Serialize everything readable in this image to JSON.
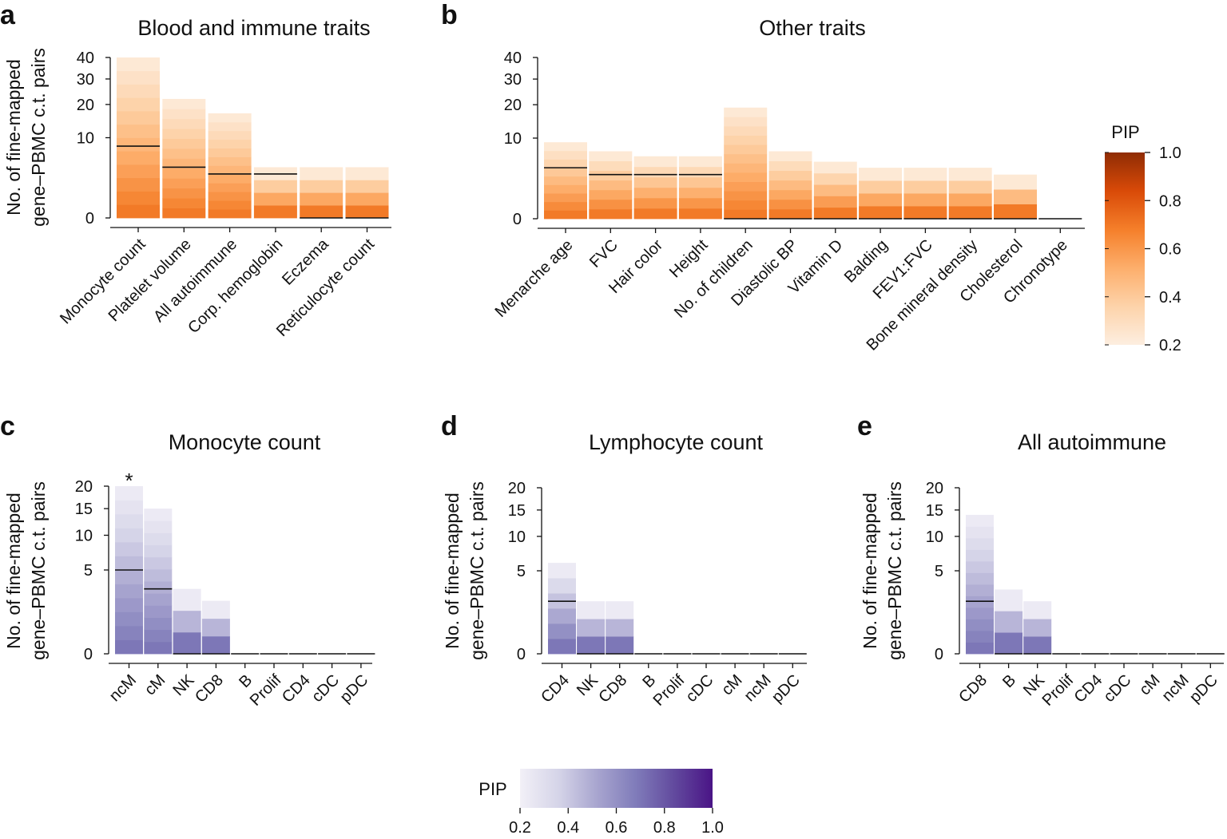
{
  "panel_letters": [
    "a",
    "b",
    "c",
    "d",
    "e"
  ],
  "ylabel_lines": [
    "No. of fine-mapped",
    "gene–PBMC c.t. pairs"
  ],
  "chart_data": [
    {
      "id": "a",
      "type": "bar",
      "stacked_by": "PIP",
      "title": "Blood and immune traits",
      "xlabel": "",
      "ylabel": "No. of fine-mapped gene–PBMC c.t. pairs",
      "y_scale": "square-root",
      "ylim": [
        0,
        40
      ],
      "y_ticks": [
        0,
        10,
        20,
        30,
        40
      ],
      "colormap": "Oranges",
      "categories": [
        "Monocyte count",
        "Platelet volume",
        "All autoimmune",
        "Corp. hemoglobin",
        "Eczema",
        "Reticulocyte count"
      ],
      "values": [
        40,
        22,
        17,
        4,
        4,
        4
      ],
      "pip_09_line": [
        8,
        4,
        3,
        3,
        0,
        0
      ],
      "annotations": []
    },
    {
      "id": "b",
      "type": "bar",
      "stacked_by": "PIP",
      "title": "Other traits",
      "xlabel": "",
      "ylabel": "",
      "y_scale": "square-root",
      "ylim": [
        0,
        40
      ],
      "y_ticks": [
        0,
        10,
        20,
        30,
        40
      ],
      "colormap": "Oranges",
      "categories": [
        "Menarche age",
        "FVC",
        "Hair color",
        "Height",
        "No. of children",
        "Diastolic BP",
        "Vitamin D",
        "Balding",
        "FEV1:FVC",
        "Bone mineral density",
        "Cholesterol",
        "Chronotype"
      ],
      "values": [
        9,
        7,
        6,
        6,
        19,
        7,
        5,
        4,
        4,
        4,
        3,
        0
      ],
      "pip_09_line": [
        4,
        3,
        3,
        3,
        0,
        0,
        0,
        0,
        0,
        0,
        0,
        0
      ],
      "annotations": []
    },
    {
      "id": "c",
      "type": "bar",
      "stacked_by": "PIP",
      "title": "Monocyte count",
      "xlabel": "",
      "ylabel": "No. of fine-mapped gene–PBMC c.t. pairs",
      "y_scale": "square-root",
      "ylim": [
        0,
        20
      ],
      "y_ticks": [
        0,
        5,
        10,
        15,
        20
      ],
      "colormap": "Purples",
      "categories": [
        "ncM",
        "cM",
        "NK",
        "CD8",
        "B",
        "Prolif",
        "CD4",
        "cDC",
        "pDC"
      ],
      "values": [
        20,
        15,
        3,
        2,
        0,
        0,
        0,
        0,
        0
      ],
      "pip_09_line": [
        5,
        3,
        0,
        0,
        0,
        0,
        0,
        0,
        0
      ],
      "annotations": [
        "*"
      ]
    },
    {
      "id": "d",
      "type": "bar",
      "stacked_by": "PIP",
      "title": "Lymphocyte count",
      "xlabel": "",
      "ylabel": "No. of fine-mapped gene–PBMC c.t. pairs",
      "y_scale": "square-root",
      "ylim": [
        0,
        20
      ],
      "y_ticks": [
        0,
        5,
        10,
        15,
        20
      ],
      "colormap": "Purples",
      "categories": [
        "CD4",
        "NK",
        "CD8",
        "B",
        "Prolif",
        "cDC",
        "cM",
        "ncM",
        "pDC"
      ],
      "values": [
        6,
        2,
        2,
        0,
        0,
        0,
        0,
        0,
        0
      ],
      "pip_09_line": [
        2,
        0,
        0,
        0,
        0,
        0,
        0,
        0,
        0
      ],
      "annotations": []
    },
    {
      "id": "e",
      "type": "bar",
      "stacked_by": "PIP",
      "title": "All autoimmune",
      "xlabel": "",
      "ylabel": "No. of fine-mapped gene–PBMC c.t. pairs",
      "y_scale": "square-root",
      "ylim": [
        0,
        20
      ],
      "y_ticks": [
        0,
        5,
        10,
        15,
        20
      ],
      "colormap": "Purples",
      "categories": [
        "CD8",
        "B",
        "NK",
        "Prolif",
        "CD4",
        "cDC",
        "cM",
        "ncM",
        "pDC"
      ],
      "values": [
        14,
        3,
        2,
        0,
        0,
        0,
        0,
        0,
        0
      ],
      "pip_09_line": [
        2,
        0,
        0,
        0,
        0,
        0,
        0,
        0,
        0
      ],
      "annotations": []
    }
  ],
  "colorbars": [
    {
      "id": "orange",
      "label": "PIP",
      "orientation": "vertical",
      "colormap": "Oranges",
      "range": [
        0.2,
        1.0
      ],
      "ticks": [
        "0.2",
        "0.4",
        "0.6",
        "0.8",
        "1.0"
      ],
      "stops": [
        "#fdeee0",
        "#fdd3aa",
        "#fdae6b",
        "#f57f2a",
        "#d94a08",
        "#8f2c04"
      ]
    },
    {
      "id": "purple",
      "label": "PIP",
      "orientation": "horizontal",
      "colormap": "Purples",
      "range": [
        0.2,
        1.0
      ],
      "ticks": [
        "0.2",
        "0.4",
        "0.6",
        "0.8",
        "1.0"
      ],
      "stops": [
        "#f2f0f7",
        "#d5d4e8",
        "#a8a5cf",
        "#807cba",
        "#624a9e",
        "#4a1486"
      ]
    }
  ]
}
